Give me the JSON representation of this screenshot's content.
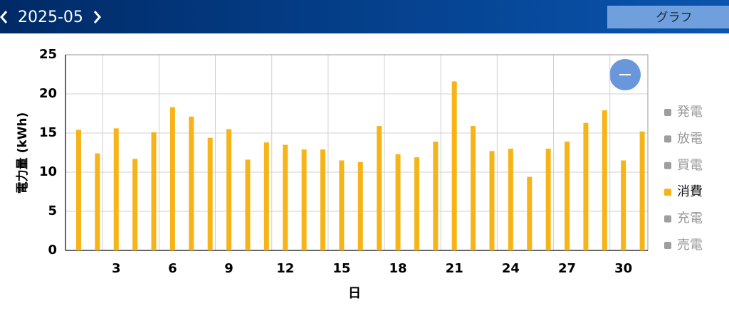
{
  "header": {
    "month": "2025-05",
    "view_button": "グラフ"
  },
  "chart_data": {
    "type": "bar",
    "y_label": "電力量 (kWh)",
    "x_label": "日",
    "x": [
      1,
      2,
      3,
      4,
      5,
      6,
      7,
      8,
      9,
      10,
      11,
      12,
      13,
      14,
      15,
      16,
      17,
      18,
      19,
      20,
      21,
      22,
      23,
      24,
      25,
      26,
      27,
      28,
      29,
      30,
      31
    ],
    "xlim": [
      0.3,
      31.3
    ],
    "xticks": [
      3,
      6,
      9,
      12,
      15,
      18,
      21,
      24,
      27,
      30
    ],
    "ylim": [
      0,
      25
    ],
    "yticks": [
      0,
      5,
      10,
      15,
      20,
      25
    ],
    "grid": true,
    "legend": "right",
    "series": [
      {
        "name": "発電",
        "color": "#9e9e9e",
        "hidden": true
      },
      {
        "name": "放電",
        "color": "#9e9e9e",
        "hidden": true
      },
      {
        "name": "買電",
        "color": "#9e9e9e",
        "hidden": true
      },
      {
        "name": "消費",
        "color": "#f6b418",
        "values": [
          15.4,
          12.4,
          15.6,
          11.7,
          15.1,
          18.3,
          17.1,
          14.4,
          15.5,
          11.6,
          13.8,
          13.5,
          12.9,
          12.9,
          11.5,
          11.3,
          15.9,
          12.3,
          11.9,
          13.9,
          21.6,
          15.9,
          12.7,
          13.0,
          9.4,
          13.0,
          13.9,
          16.3,
          17.9,
          11.5,
          15.2
        ]
      },
      {
        "name": "充電",
        "color": "#9e9e9e",
        "hidden": true
      },
      {
        "name": "売電",
        "color": "#9e9e9e",
        "hidden": true
      }
    ]
  }
}
